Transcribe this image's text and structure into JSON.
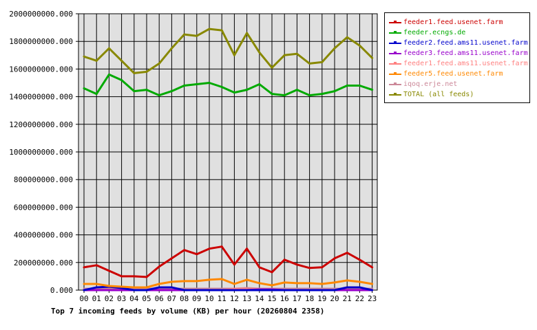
{
  "chart_data": {
    "type": "line",
    "title": "Top 7 incoming feeds by volume (KB) per hour (20260804 2358)",
    "categories": [
      "00",
      "01",
      "02",
      "03",
      "04",
      "05",
      "06",
      "07",
      "08",
      "09",
      "10",
      "11",
      "12",
      "13",
      "14",
      "15",
      "16",
      "17",
      "18",
      "19",
      "20",
      "21",
      "22",
      "23"
    ],
    "ylim": [
      0,
      2000000000
    ],
    "yticks": [
      "0.000",
      "200000000.000",
      "400000000.000",
      "600000000.000",
      "800000000.000",
      "1000000000.000",
      "1200000000.000",
      "1400000000.000",
      "1600000000.000",
      "1800000000.000",
      "2000000000.000"
    ],
    "ytick_values": [
      0,
      200000000,
      400000000,
      600000000,
      800000000,
      1000000000,
      1200000000,
      1400000000,
      1600000000,
      1800000000,
      2000000000
    ],
    "grid": true,
    "legend_position": "right",
    "series": [
      {
        "name": "feeder1.feed.usenet.farm",
        "color": "#cc0000",
        "values": [
          165000000,
          180000000,
          140000000,
          100000000,
          100000000,
          95000000,
          170000000,
          230000000,
          290000000,
          260000000,
          300000000,
          315000000,
          185000000,
          300000000,
          165000000,
          130000000,
          220000000,
          185000000,
          160000000,
          165000000,
          230000000,
          270000000,
          220000000,
          165000000
        ]
      },
      {
        "name": "feeder.ecngs.de",
        "color": "#00aa00",
        "values": [
          1460000000,
          1420000000,
          1560000000,
          1520000000,
          1440000000,
          1450000000,
          1410000000,
          1440000000,
          1480000000,
          1490000000,
          1500000000,
          1470000000,
          1430000000,
          1450000000,
          1490000000,
          1420000000,
          1410000000,
          1450000000,
          1410000000,
          1420000000,
          1440000000,
          1480000000,
          1480000000,
          1450000000
        ]
      },
      {
        "name": "feeder2.feed.ams11.usenet.farm",
        "color": "#0000cc",
        "values": [
          0,
          20000000,
          25000000,
          15000000,
          0,
          0,
          20000000,
          20000000,
          0,
          0,
          0,
          0,
          0,
          0,
          0,
          0,
          0,
          0,
          0,
          0,
          0,
          20000000,
          20000000,
          0
        ]
      },
      {
        "name": "feeder3.feed.ams11.usenet.farm",
        "color": "#9900cc",
        "values": [
          0,
          0,
          0,
          0,
          0,
          0,
          0,
          0,
          0,
          0,
          0,
          0,
          0,
          0,
          5000000,
          5000000,
          0,
          0,
          0,
          0,
          0,
          0,
          0,
          0
        ]
      },
      {
        "name": "feeder1.feed.ams11.usenet.farm",
        "color": "#ff8080",
        "values": [
          0,
          0,
          0,
          0,
          0,
          0,
          0,
          0,
          0,
          0,
          0,
          0,
          10000000,
          10000000,
          5000000,
          0,
          0,
          0,
          0,
          0,
          0,
          0,
          0,
          0
        ]
      },
      {
        "name": "feeder5.feed.usenet.farm",
        "color": "#ff8800",
        "values": [
          45000000,
          45000000,
          30000000,
          25000000,
          20000000,
          20000000,
          45000000,
          60000000,
          65000000,
          65000000,
          75000000,
          80000000,
          45000000,
          75000000,
          50000000,
          35000000,
          55000000,
          50000000,
          50000000,
          45000000,
          55000000,
          70000000,
          60000000,
          45000000
        ]
      },
      {
        "name": "iqoq.erje.net",
        "color": "#cc8899",
        "values": [
          10000000,
          10000000,
          10000000,
          10000000,
          10000000,
          10000000,
          10000000,
          10000000,
          10000000,
          10000000,
          10000000,
          10000000,
          10000000,
          15000000,
          10000000,
          10000000,
          10000000,
          10000000,
          10000000,
          10000000,
          10000000,
          10000000,
          10000000,
          10000000
        ]
      },
      {
        "name": "TOTAL (all feeds)",
        "color": "#888800",
        "values": [
          1690000000,
          1660000000,
          1750000000,
          1660000000,
          1570000000,
          1580000000,
          1640000000,
          1750000000,
          1850000000,
          1840000000,
          1890000000,
          1880000000,
          1700000000,
          1860000000,
          1720000000,
          1610000000,
          1700000000,
          1710000000,
          1640000000,
          1650000000,
          1750000000,
          1830000000,
          1770000000,
          1680000000
        ]
      }
    ]
  }
}
